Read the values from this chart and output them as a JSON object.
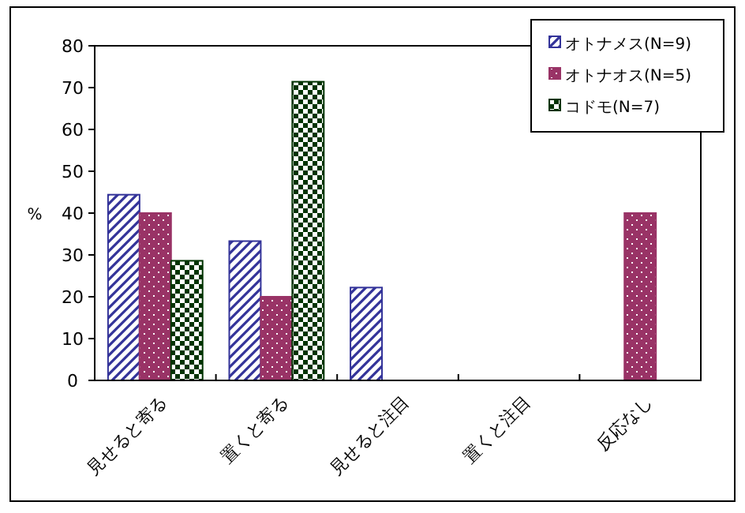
{
  "chart_data": {
    "type": "bar",
    "ylabel": "%",
    "categories": [
      "見せると寄る",
      "置くと寄る",
      "見せると注目",
      "置くと注目",
      "反応なし"
    ],
    "series": [
      {
        "name": "オトナメス(N=9)",
        "color": "#333399",
        "values": [
          44.4,
          33.3,
          22.2,
          0,
          0
        ]
      },
      {
        "name": "オトナオス(N=5)",
        "color": "#993366",
        "values": [
          40,
          20,
          0,
          0,
          40
        ]
      },
      {
        "name": "コドモ(N=7)",
        "color": "#003300",
        "values": [
          28.6,
          71.4,
          0,
          0,
          0
        ]
      }
    ],
    "ylim": [
      0,
      80
    ],
    "yticks": [
      0,
      10,
      20,
      30,
      40,
      50,
      60,
      70,
      80
    ],
    "grid": false,
    "legend": "top right"
  }
}
